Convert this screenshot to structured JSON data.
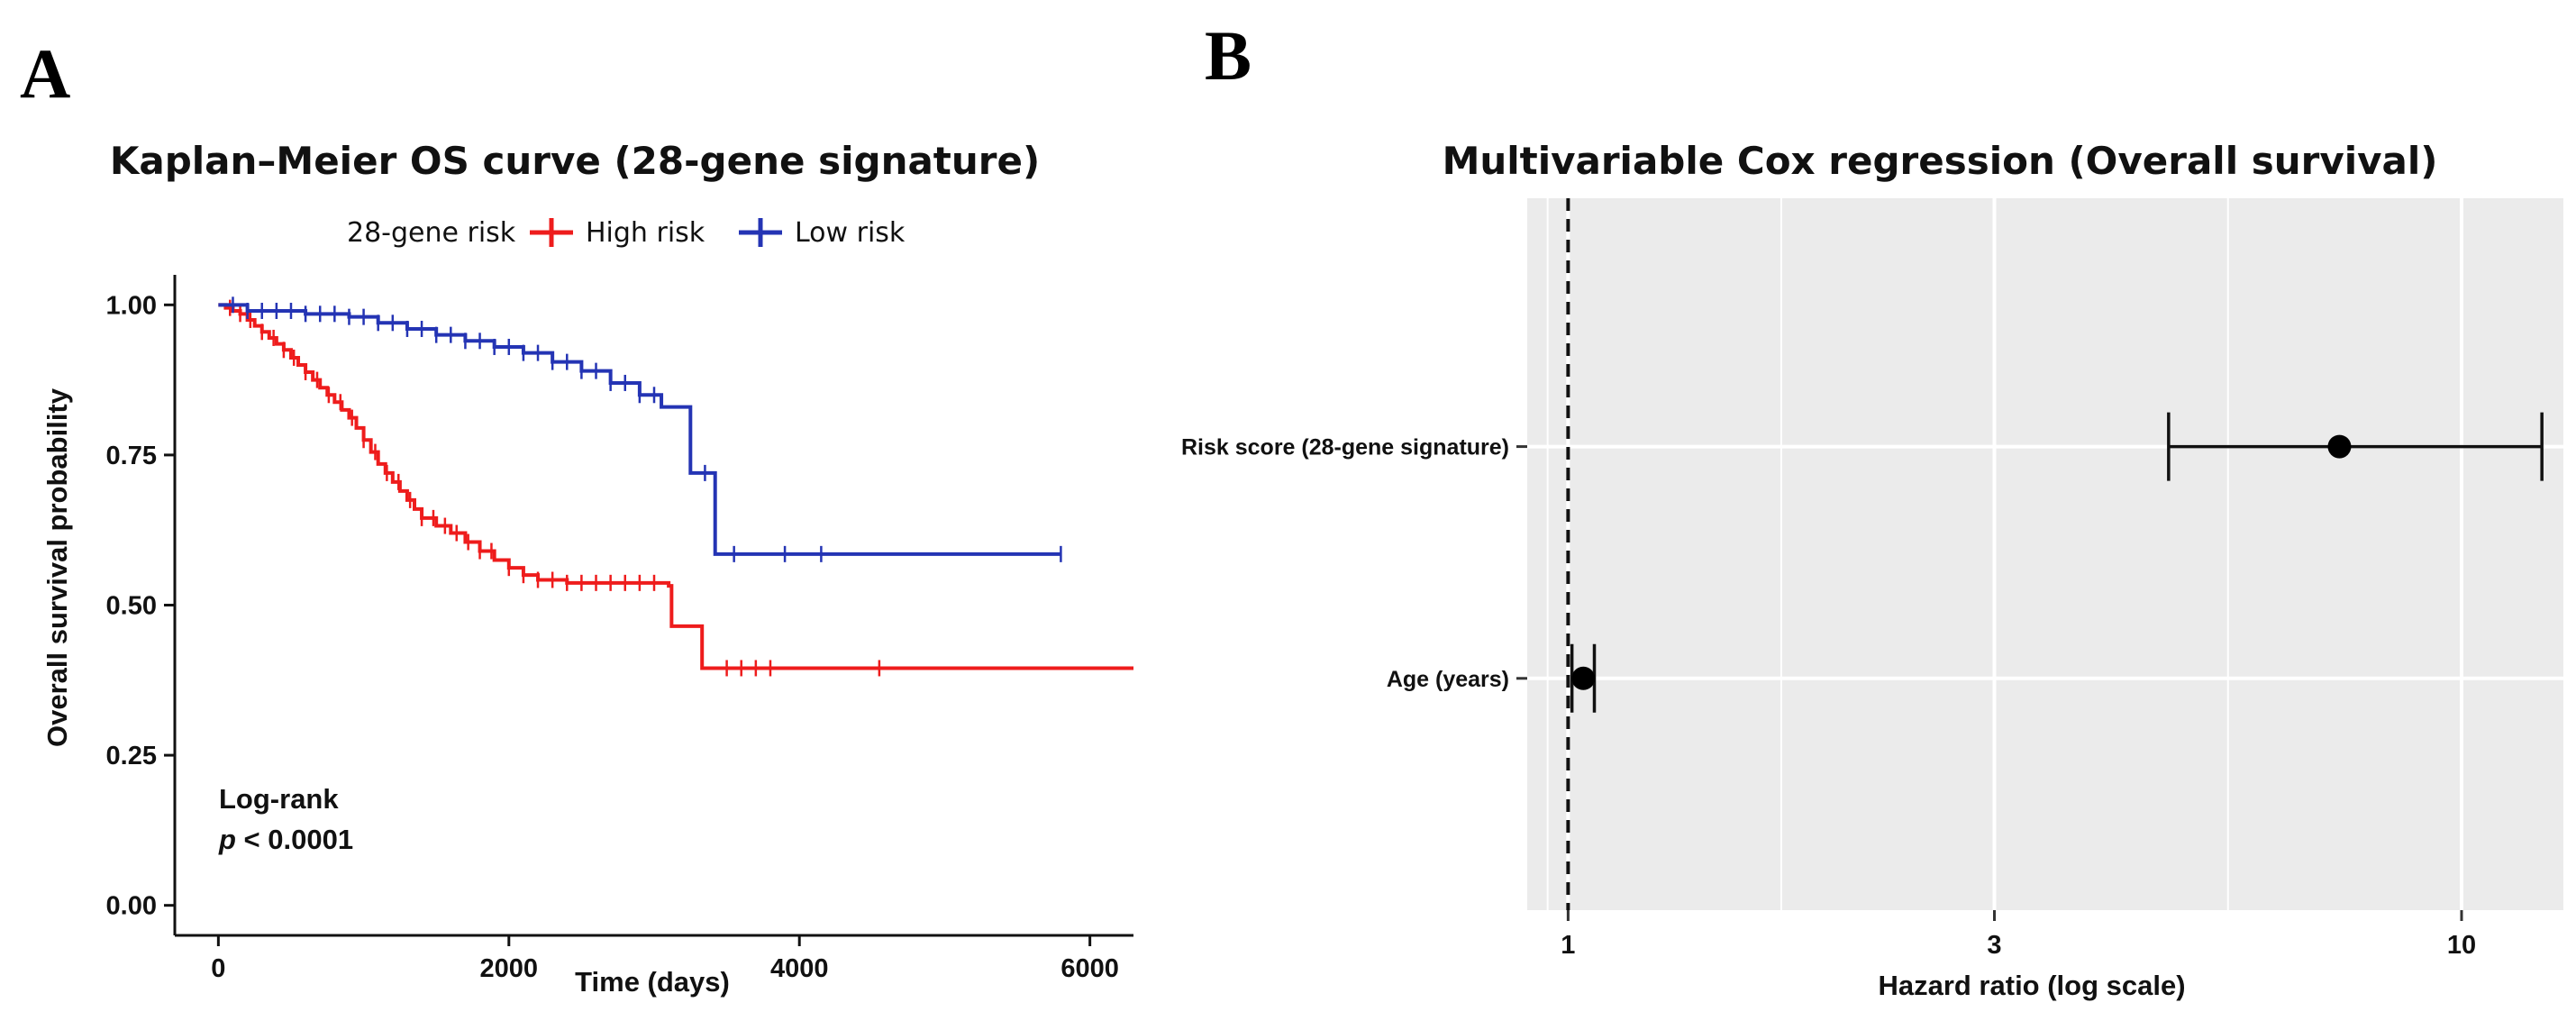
{
  "panels": {
    "a_label": "A",
    "b_label": "B"
  },
  "chart_data": [
    {
      "type": "line",
      "title": "Kaplan–Meier OS curve (28-gene signature)",
      "xlabel": "Time (days)",
      "ylabel": "Overall survival probability",
      "xlim": [
        -300,
        6300
      ],
      "ylim": [
        -0.05,
        1.05
      ],
      "x_ticks": [
        0,
        2000,
        4000,
        6000
      ],
      "x_tick_labels": [
        "0",
        "2000",
        "4000",
        "6000"
      ],
      "y_ticks": [
        0,
        0.25,
        0.5,
        0.75,
        1
      ],
      "y_tick_labels": [
        "0.00",
        "0.25",
        "0.50",
        "0.75",
        "1.00"
      ],
      "grid": false,
      "legend": {
        "title": "28-gene risk",
        "placement": "top",
        "entries": [
          "High risk",
          "Low risk"
        ]
      },
      "annotation": {
        "line1": "Log-rank",
        "p_symbol": "p",
        "p_rest": " < 0.0001"
      },
      "series": [
        {
          "name": "High risk",
          "color": "#ee1c1c",
          "steps": [
            [
              0,
              1.0
            ],
            [
              50,
              0.995
            ],
            [
              100,
              0.99
            ],
            [
              150,
              0.985
            ],
            [
              200,
              0.975
            ],
            [
              250,
              0.965
            ],
            [
              300,
              0.955
            ],
            [
              350,
              0.945
            ],
            [
              400,
              0.935
            ],
            [
              450,
              0.925
            ],
            [
              500,
              0.912
            ],
            [
              550,
              0.9
            ],
            [
              600,
              0.888
            ],
            [
              650,
              0.875
            ],
            [
              700,
              0.862
            ],
            [
              750,
              0.85
            ],
            [
              800,
              0.838
            ],
            [
              850,
              0.825
            ],
            [
              900,
              0.812
            ],
            [
              950,
              0.795
            ],
            [
              1000,
              0.775
            ],
            [
              1050,
              0.755
            ],
            [
              1100,
              0.735
            ],
            [
              1150,
              0.72
            ],
            [
              1200,
              0.705
            ],
            [
              1250,
              0.69
            ],
            [
              1300,
              0.675
            ],
            [
              1350,
              0.66
            ],
            [
              1400,
              0.645
            ],
            [
              1500,
              0.632
            ],
            [
              1600,
              0.62
            ],
            [
              1700,
              0.605
            ],
            [
              1800,
              0.59
            ],
            [
              1900,
              0.575
            ],
            [
              2000,
              0.562
            ],
            [
              2100,
              0.55
            ],
            [
              2200,
              0.542
            ],
            [
              2400,
              0.537
            ],
            [
              3100,
              0.532
            ],
            [
              3120,
              0.465
            ],
            [
              3330,
              0.395
            ]
          ],
          "end_x": 6300,
          "censor": [
            80,
            150,
            220,
            300,
            380,
            450,
            520,
            600,
            680,
            760,
            840,
            920,
            1000,
            1080,
            1160,
            1240,
            1320,
            1400,
            1480,
            1560,
            1640,
            1720,
            1800,
            1880,
            2000,
            2100,
            2200,
            2300,
            2400,
            2500,
            2600,
            2700,
            2800,
            2900,
            3000,
            3500,
            3600,
            3700,
            3800,
            4550
          ]
        },
        {
          "name": "Low risk",
          "color": "#2434b4",
          "steps": [
            [
              0,
              1.0
            ],
            [
              200,
              0.99
            ],
            [
              600,
              0.985
            ],
            [
              900,
              0.98
            ],
            [
              1100,
              0.97
            ],
            [
              1300,
              0.96
            ],
            [
              1500,
              0.95
            ],
            [
              1700,
              0.94
            ],
            [
              1900,
              0.93
            ],
            [
              2100,
              0.92
            ],
            [
              2300,
              0.905
            ],
            [
              2500,
              0.89
            ],
            [
              2700,
              0.87
            ],
            [
              2900,
              0.85
            ],
            [
              3050,
              0.83
            ],
            [
              3250,
              0.72
            ],
            [
              3420,
              0.585
            ]
          ],
          "end_x": 5800,
          "censor": [
            100,
            200,
            300,
            400,
            500,
            600,
            700,
            800,
            900,
            1000,
            1100,
            1200,
            1300,
            1400,
            1500,
            1600,
            1700,
            1800,
            1900,
            2000,
            2100,
            2200,
            2300,
            2400,
            2500,
            2600,
            2700,
            2800,
            2900,
            3000,
            3350,
            3550,
            3900,
            4150,
            5800
          ]
        }
      ]
    },
    {
      "type": "scatter",
      "subtype": "forest",
      "title": "Multivariable Cox regression (Overall survival)",
      "xlabel": "Hazard ratio (log scale)",
      "x_scale": "log",
      "xlim": [
        0.9,
        13
      ],
      "x_ticks": [
        1,
        3,
        10
      ],
      "x_tick_labels": [
        "1",
        "3",
        "10"
      ],
      "reference_line": 1,
      "grid": true,
      "categories": [
        "Risk score (28-gene signature)",
        "Age (years)"
      ],
      "estimates": [
        7.3,
        1.04
      ],
      "ci_low": [
        4.7,
        1.01
      ],
      "ci_high": [
        12.3,
        1.07
      ]
    }
  ]
}
